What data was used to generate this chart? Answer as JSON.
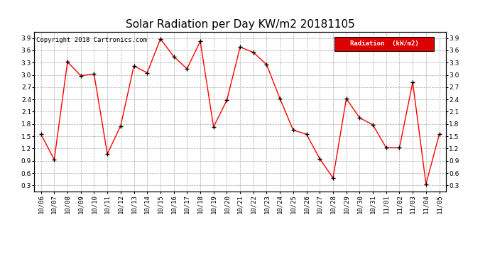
{
  "title": "Solar Radiation per Day KW/m2 20181105",
  "copyright": "Copyright 2018 Cartronics.com",
  "legend_label": "Radiation  (kW/m2)",
  "labels": [
    "10/06",
    "10/07",
    "10/08",
    "10/09",
    "10/10",
    "10/11",
    "10/12",
    "10/13",
    "10/14",
    "10/15",
    "10/16",
    "10/17",
    "10/18",
    "10/19",
    "10/20",
    "10/21",
    "10/22",
    "10/23",
    "10/24",
    "10/25",
    "10/26",
    "10/27",
    "10/28",
    "10/29",
    "10/30",
    "10/31",
    "11/01",
    "11/02",
    "11/03",
    "11/04",
    "11/05"
  ],
  "values": [
    1.55,
    0.93,
    3.32,
    2.98,
    3.02,
    1.07,
    1.75,
    3.22,
    3.05,
    3.88,
    3.45,
    3.15,
    3.82,
    1.73,
    2.38,
    3.68,
    3.55,
    3.25,
    2.42,
    1.65,
    1.55,
    0.95,
    0.48,
    2.42,
    1.95,
    1.78,
    1.22,
    1.22,
    2.82,
    0.33,
    1.55
  ],
  "line_color": "red",
  "marker_color": "black",
  "bg_color": "white",
  "grid_color": "#aaaaaa",
  "ylim": [
    0.15,
    4.05
  ],
  "yticks": [
    0.3,
    0.6,
    0.9,
    1.2,
    1.5,
    1.8,
    2.1,
    2.4,
    2.7,
    3.0,
    3.3,
    3.6,
    3.9
  ],
  "title_fontsize": 11,
  "tick_fontsize": 6.5,
  "copyright_fontsize": 6.5,
  "legend_bg": "#dd0000",
  "legend_text_color": "white"
}
